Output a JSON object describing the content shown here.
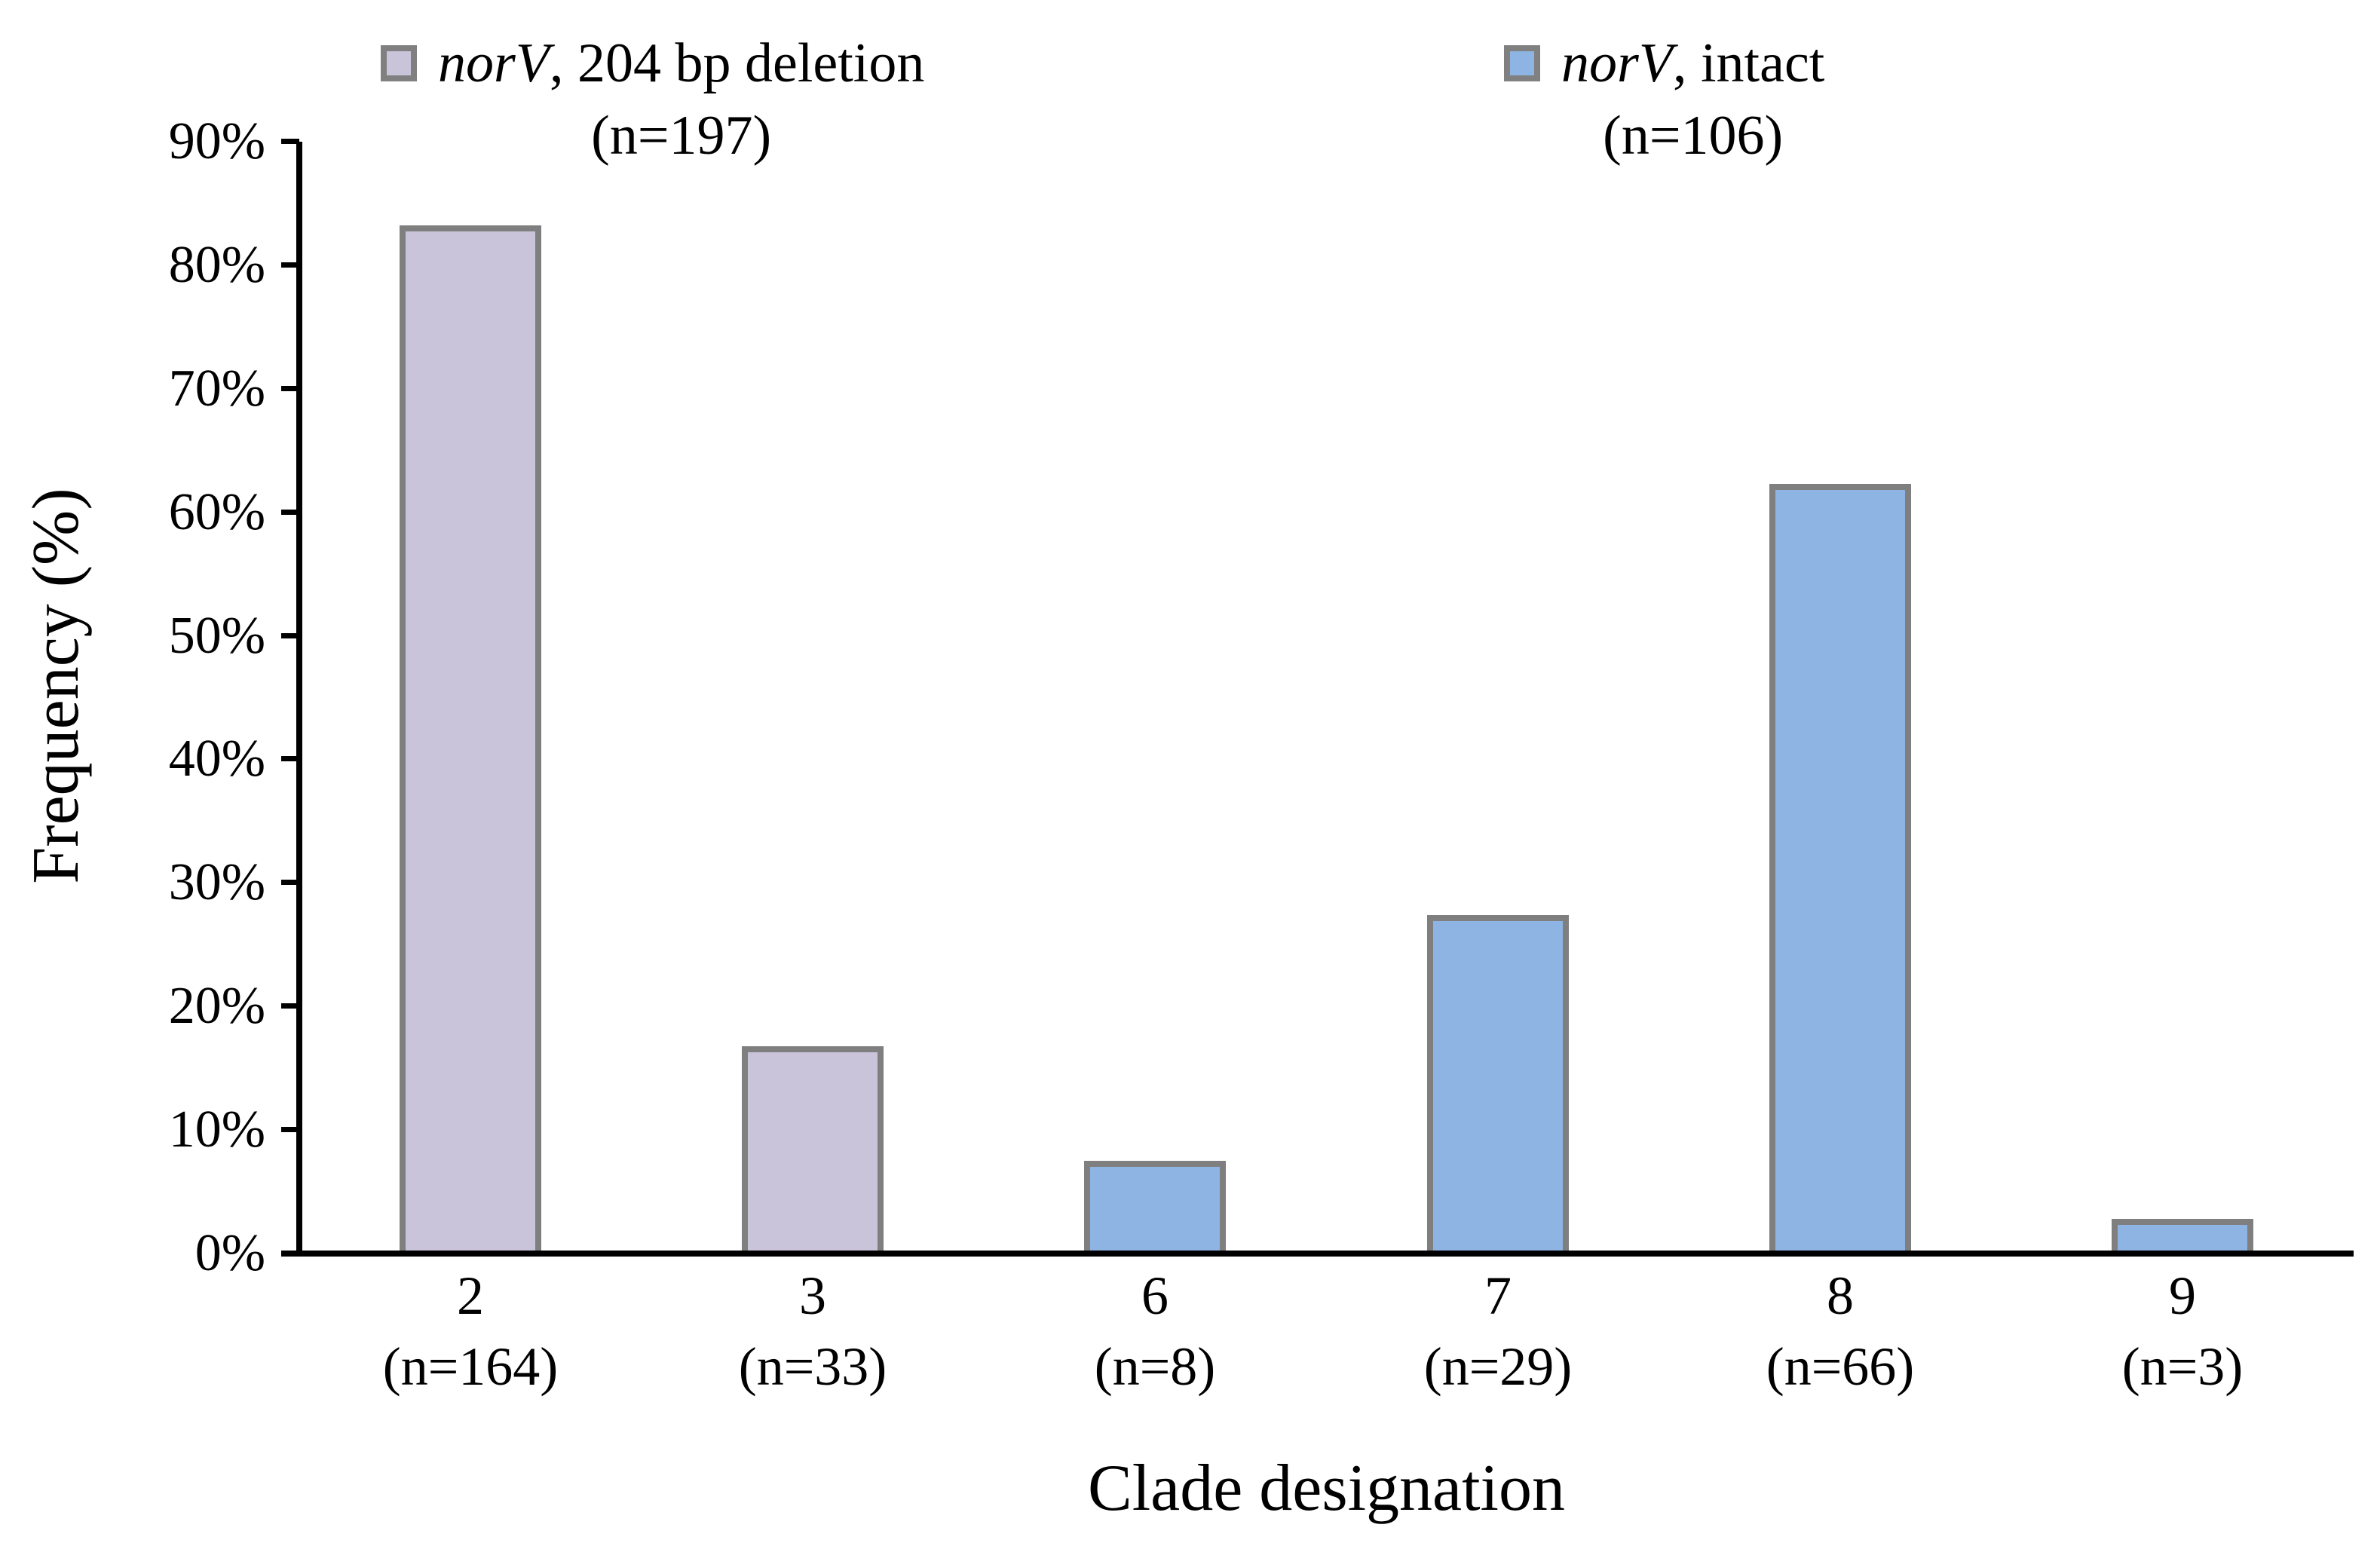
{
  "figure": {
    "background": "#ffffff",
    "text_color": "#000000",
    "axis_color": "#000000",
    "bar_border_color": "#7F7F7F"
  },
  "legend": {
    "items": [
      {
        "gene": "norV",
        "rest": ", 204 bp deletion",
        "n_label": "(n=197)",
        "color": "#CAC4DB",
        "border": "#808080"
      },
      {
        "gene": "norV",
        "rest": ", intact",
        "n_label": "(n=106)",
        "color": "#8DB4E2",
        "border": "#808080"
      }
    ]
  },
  "chart_data": {
    "type": "bar",
    "title": "",
    "xlabel": "Clade designation",
    "ylabel": "Frequency (%)",
    "ylim": [
      0,
      90
    ],
    "ytick_step": 10,
    "ytick_labels": [
      "0%",
      "10%",
      "20%",
      "30%",
      "40%",
      "50%",
      "60%",
      "70%",
      "80%",
      "90%"
    ],
    "grid": false,
    "legend_position": "top",
    "categories": [
      "2",
      "3",
      "6",
      "7",
      "8",
      "9"
    ],
    "category_sublabels": [
      "(n=164)",
      "(n=33)",
      "(n=8)",
      "(n=29)",
      "(n=66)",
      "(n=3)"
    ],
    "series": [
      {
        "name": "norV, 204 bp deletion (n=197)",
        "color": "#CAC4DB",
        "values": [
          83.2,
          16.8,
          null,
          null,
          null,
          null
        ]
      },
      {
        "name": "norV, intact (n=106)",
        "color": "#8DB4E2",
        "values": [
          null,
          null,
          7.5,
          27.4,
          62.3,
          2.8
        ]
      }
    ],
    "bars": [
      {
        "category": "2",
        "sublabel": "(n=164)",
        "series": "norV, 204 bp deletion",
        "value_pct": 83.2,
        "color": "#CAC4DB"
      },
      {
        "category": "3",
        "sublabel": "(n=33)",
        "series": "norV, 204 bp deletion",
        "value_pct": 16.8,
        "color": "#CAC4DB"
      },
      {
        "category": "6",
        "sublabel": "(n=8)",
        "series": "norV, intact",
        "value_pct": 7.5,
        "color": "#8DB4E2"
      },
      {
        "category": "7",
        "sublabel": "(n=29)",
        "series": "norV, intact",
        "value_pct": 27.4,
        "color": "#8DB4E2"
      },
      {
        "category": "8",
        "sublabel": "(n=66)",
        "series": "norV, intact",
        "value_pct": 62.3,
        "color": "#8DB4E2"
      },
      {
        "category": "9",
        "sublabel": "(n=3)",
        "series": "norV, intact",
        "value_pct": 2.8,
        "color": "#8DB4E2"
      }
    ]
  }
}
